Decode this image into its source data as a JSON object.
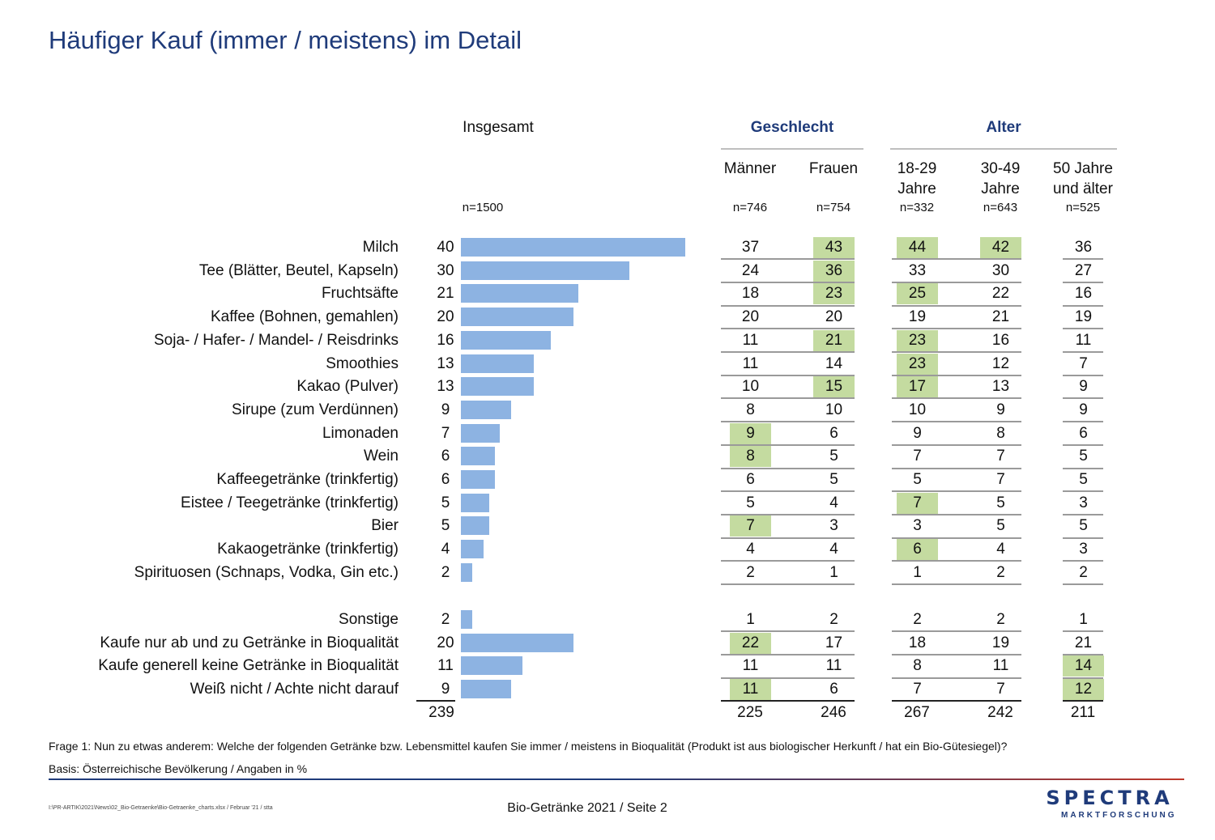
{
  "title": "Häufiger Kauf (immer / meistens) im Detail",
  "header": {
    "total_label": "Insgesamt",
    "total_n": "n=1500",
    "group_gender": "Geschlecht",
    "group_age": "Alter",
    "columns": [
      {
        "line1": "Männer",
        "line2": "",
        "n": "n=746"
      },
      {
        "line1": "Frauen",
        "line2": "",
        "n": "n=754"
      },
      {
        "line1": "18-29",
        "line2": "Jahre",
        "n": "n=332"
      },
      {
        "line1": "30-49",
        "line2": "Jahre",
        "n": "n=643"
      },
      {
        "line1": "50 Jahre",
        "line2": "und älter",
        "n": "n=525"
      }
    ]
  },
  "chart_data": {
    "type": "bar",
    "orientation": "horizontal",
    "title": "Insgesamt",
    "categories": [
      "Milch",
      "Tee (Blätter, Beutel, Kapseln)",
      "Fruchtsäfte",
      "Kaffee (Bohnen, gemahlen)",
      "Soja- / Hafer- / Mandel- / Reisdrinks",
      "Smoothies",
      "Kakao (Pulver)",
      "Sirupe (zum Verdünnen)",
      "Limonaden",
      "Wein",
      "Kaffeegetränke (trinkfertig)",
      "Eistee / Teegetränke (trinkfertig)",
      "Bier",
      "Kakaogetränke (trinkfertig)",
      "Spirituosen (Schnaps, Vodka, Gin etc.)",
      "Sonstige",
      "Kaufe nur ab und zu Getränke in Bioqualität",
      "Kaufe generell keine Getränke in Bioqualität",
      "Weiß nicht / Achte nicht darauf"
    ],
    "values": [
      40,
      30,
      21,
      20,
      16,
      13,
      13,
      9,
      7,
      6,
      6,
      5,
      5,
      4,
      2,
      2,
      20,
      11,
      9
    ],
    "total": 239,
    "xlim": [
      0,
      40
    ]
  },
  "table": {
    "rows": [
      [
        37,
        43,
        44,
        42,
        36
      ],
      [
        24,
        36,
        33,
        30,
        27
      ],
      [
        18,
        23,
        25,
        22,
        16
      ],
      [
        20,
        20,
        19,
        21,
        19
      ],
      [
        11,
        21,
        23,
        16,
        11
      ],
      [
        11,
        14,
        23,
        12,
        7
      ],
      [
        10,
        15,
        17,
        13,
        9
      ],
      [
        8,
        10,
        10,
        9,
        9
      ],
      [
        9,
        6,
        9,
        8,
        6
      ],
      [
        8,
        5,
        7,
        7,
        5
      ],
      [
        6,
        5,
        5,
        7,
        5
      ],
      [
        5,
        4,
        7,
        5,
        3
      ],
      [
        7,
        3,
        3,
        5,
        5
      ],
      [
        4,
        4,
        6,
        4,
        3
      ],
      [
        2,
        1,
        1,
        2,
        2
      ],
      [
        1,
        2,
        2,
        2,
        1
      ],
      [
        22,
        17,
        18,
        19,
        21
      ],
      [
        11,
        11,
        8,
        11,
        14
      ],
      [
        11,
        6,
        7,
        7,
        12
      ]
    ],
    "highlights": [
      [
        0,
        1
      ],
      [
        0,
        2
      ],
      [
        0,
        3
      ],
      [
        1,
        1
      ],
      [
        2,
        1
      ],
      [
        2,
        2
      ],
      [
        4,
        1
      ],
      [
        4,
        2
      ],
      [
        5,
        2
      ],
      [
        6,
        1
      ],
      [
        6,
        2
      ],
      [
        8,
        0
      ],
      [
        9,
        0
      ],
      [
        11,
        2
      ],
      [
        12,
        0
      ],
      [
        13,
        2
      ],
      [
        16,
        0
      ],
      [
        17,
        4
      ],
      [
        18,
        0
      ],
      [
        18,
        4
      ]
    ],
    "totals": [
      225,
      246,
      267,
      242,
      211
    ],
    "highlight_color": "#c4dba0"
  },
  "bar_color": "#8db3e2",
  "footer": {
    "question": "Frage 1: Nun zu etwas anderem: Welche der folgenden Getränke bzw. Lebensmittel kaufen Sie immer / meistens in Bioqualität (Produkt ist aus biologischer Herkunft / hat ein Bio-Gütesiegel)?",
    "basis": "Basis: Österreichische Bevölkerung / Angaben in %",
    "path": "I:\\PR-ARTIK\\2021\\News\\02_Bio-Getraenke\\Bio-Getraenke_charts.xlsx / Februar '21 / stta",
    "page": "Bio-Getränke 2021  /  Seite  2",
    "logo_main": "SPECTRA",
    "logo_sub": "MARKTFORSCHUNG"
  }
}
